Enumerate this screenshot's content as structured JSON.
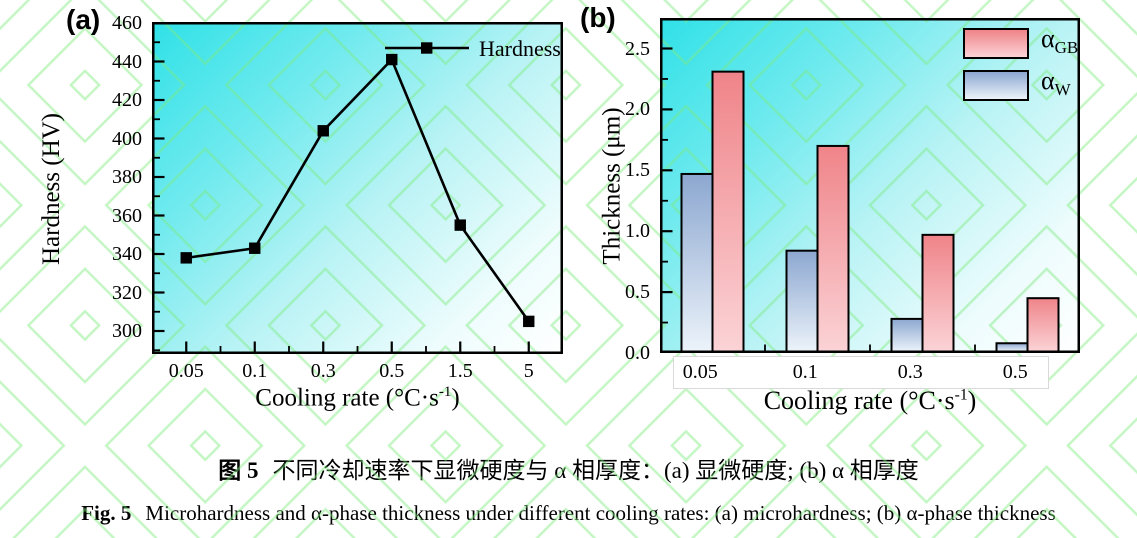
{
  "panels": {
    "a": "(a)",
    "b": "(b)"
  },
  "chart_data": [
    {
      "panel": "a",
      "type": "line",
      "categories": [
        "0.05",
        "0.1",
        "0.3",
        "0.5",
        "1.5",
        "5"
      ],
      "series": [
        {
          "name": "Hardness",
          "values": [
            338,
            343,
            404,
            441,
            355,
            305
          ],
          "marker": "filled-square",
          "color": "#000000"
        }
      ],
      "xlabel": "Cooling rate (°C·s⁻¹)",
      "ylabel": "Hardness (HV)",
      "ylim": [
        288,
        460
      ],
      "yticks": [
        300,
        320,
        340,
        360,
        380,
        400,
        420,
        440,
        460
      ],
      "legend": {
        "position": "top-right-inside",
        "entries": [
          "Hardness"
        ]
      },
      "grid": false,
      "background": "cyan-to-white-gradient"
    },
    {
      "panel": "b",
      "type": "bar",
      "categories": [
        "0.05",
        "0.1",
        "0.3",
        "0.5"
      ],
      "series": [
        {
          "name": "αGB",
          "label_base": "α",
          "label_sub": "GB",
          "values": [
            2.31,
            1.7,
            0.97,
            0.45
          ],
          "fill_top": "#ef8489",
          "fill_bottom": "#fbd3d6"
        },
        {
          "name": "αW",
          "label_base": "α",
          "label_sub": "W",
          "values": [
            1.47,
            0.84,
            0.28,
            0.08
          ],
          "fill_top": "#8ca7d0",
          "fill_bottom": "#ecf3fa"
        }
      ],
      "xlabel": "Cooling rate (°C·s⁻¹)",
      "ylabel": "Thickness (μm)",
      "ylim": [
        0,
        2.75
      ],
      "yticks": [
        "0.0",
        "0.5",
        "1.0",
        "1.5",
        "2.0",
        "2.5"
      ],
      "legend": {
        "position": "top-right-inside",
        "entries": [
          "αGB",
          "αW"
        ]
      },
      "grid": false,
      "background": "cyan-to-white-gradient"
    }
  ],
  "axis_display": {
    "xlabel_pre": "Cooling rate (°C·s",
    "xlabel_sup": "-1",
    "xlabel_post": ")"
  },
  "captions": {
    "zh_prefix": "图 5",
    "zh_text": "不同冷却速率下显微硬度与 α 相厚度：(a) 显微硬度; (b) α 相厚度",
    "en_prefix": "Fig. 5",
    "en_text": "Microhardness and α-phase thickness under different cooling rates: (a) microhardness; (b) α-phase thickness"
  },
  "colors": {
    "plot_gradient_start": "#2fe1e7",
    "plot_gradient_end": "#ffffff",
    "watermark_green": "#7dec7d",
    "axis": "#000000"
  }
}
